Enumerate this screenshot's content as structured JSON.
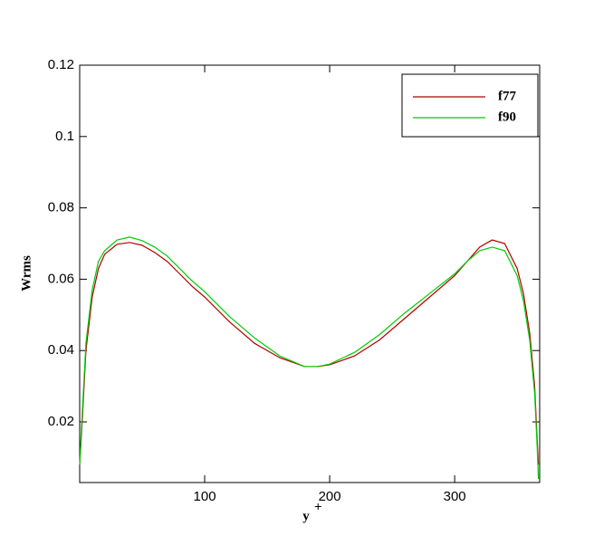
{
  "chart_data": {
    "type": "line",
    "ylabel": "Wrms",
    "xlabel": "y",
    "xlabel_superscript": "+",
    "x": [
      0,
      2,
      5,
      10,
      15,
      20,
      30,
      40,
      50,
      60,
      70,
      80,
      90,
      100,
      120,
      140,
      160,
      180,
      190,
      200,
      220,
      240,
      260,
      280,
      300,
      310,
      320,
      330,
      340,
      350,
      355,
      360,
      364,
      366,
      367
    ],
    "series": [
      {
        "name": "f77",
        "color": "#b00000",
        "values": [
          0.008,
          0.02,
          0.04,
          0.055,
          0.063,
          0.067,
          0.0698,
          0.0703,
          0.0695,
          0.0675,
          0.065,
          0.0615,
          0.058,
          0.055,
          0.048,
          0.042,
          0.038,
          0.0355,
          0.0355,
          0.036,
          0.0385,
          0.043,
          0.049,
          0.055,
          0.061,
          0.065,
          0.069,
          0.071,
          0.07,
          0.063,
          0.056,
          0.045,
          0.03,
          0.015,
          0.008
        ]
      },
      {
        "name": "f90",
        "color": "#00cc00",
        "values": [
          0.008,
          0.022,
          0.042,
          0.057,
          0.065,
          0.068,
          0.071,
          0.0718,
          0.0708,
          0.069,
          0.0665,
          0.063,
          0.0595,
          0.0565,
          0.0495,
          0.0435,
          0.0385,
          0.0355,
          0.0355,
          0.0362,
          0.0395,
          0.0445,
          0.0505,
          0.056,
          0.0615,
          0.065,
          0.068,
          0.069,
          0.068,
          0.061,
          0.054,
          0.043,
          0.028,
          0.013,
          0.004
        ]
      }
    ],
    "xlim": [
      0,
      368
    ],
    "xticks": [
      100,
      200,
      300
    ],
    "ylim": [
      0.003,
      0.12
    ],
    "yticks": [
      0.02,
      0.04,
      0.06,
      0.08,
      0.1,
      0.12
    ],
    "legend": "top-right"
  }
}
